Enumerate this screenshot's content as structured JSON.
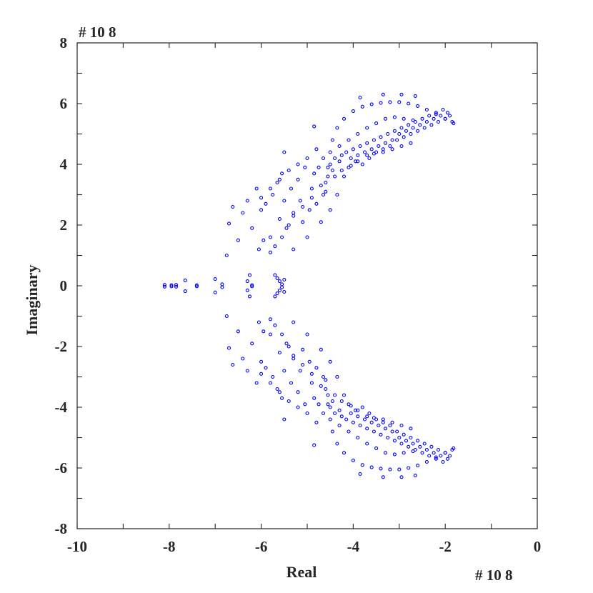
{
  "chart_data": {
    "type": "scatter",
    "title": "",
    "xlabel": "Real",
    "ylabel": "Imaginary",
    "x_multiplier": "# 10 8",
    "y_multiplier": "# 10 8",
    "xlim": [
      -10,
      0
    ],
    "ylim": [
      -8,
      8
    ],
    "xticks": [
      -10,
      -8,
      -6,
      -4,
      -2,
      0
    ],
    "yticks": [
      -8,
      -6,
      -4,
      -2,
      0,
      2,
      4,
      6,
      8
    ],
    "xtick_labels": [
      "-10",
      "-8",
      "-6",
      "-4",
      "-2",
      "0"
    ],
    "ytick_labels": [
      "-8",
      "-6",
      "-4",
      "-2",
      "0",
      "2",
      "4",
      "6",
      "8"
    ],
    "grid": false,
    "marker": "open-circle",
    "marker_color": "#0000ff",
    "axis_color": "#262626",
    "series": [
      {
        "points_upper_half": [
          [
            -8.1,
            0.03
          ],
          [
            -7.95,
            0.02
          ],
          [
            -7.85,
            0.03
          ],
          [
            -7.65,
            0.18
          ],
          [
            -7.4,
            0.02
          ],
          [
            -7.0,
            0.22
          ],
          [
            -6.85,
            0.05
          ],
          [
            -6.3,
            0.15
          ],
          [
            -6.25,
            0.35
          ],
          [
            -6.2,
            0.02
          ],
          [
            -5.7,
            0.35
          ],
          [
            -5.65,
            0.25
          ],
          [
            -5.6,
            0.15
          ],
          [
            -5.55,
            0.05
          ],
          [
            -5.5,
            0.2
          ],
          [
            -6.75,
            1.0
          ],
          [
            -6.7,
            2.05
          ],
          [
            -6.62,
            2.6
          ],
          [
            -6.5,
            1.5
          ],
          [
            -6.4,
            2.4
          ],
          [
            -6.3,
            2.8
          ],
          [
            -6.2,
            1.9
          ],
          [
            -6.1,
            3.2
          ],
          [
            -6.05,
            1.2
          ],
          [
            -6.0,
            2.5
          ],
          [
            -5.9,
            2.7
          ],
          [
            -5.8,
            1.6
          ],
          [
            -5.75,
            3.0
          ],
          [
            -5.65,
            3.4
          ],
          [
            -5.6,
            2.2
          ],
          [
            -5.55,
            3.7
          ],
          [
            -5.5,
            2.8
          ],
          [
            -5.45,
            1.9
          ],
          [
            -5.35,
            3.2
          ],
          [
            -5.3,
            2.4
          ],
          [
            -5.3,
            1.2
          ],
          [
            -5.2,
            3.5
          ],
          [
            -5.15,
            2.8
          ],
          [
            -5.1,
            2.1
          ],
          [
            -5.05,
            3.9
          ],
          [
            -5.0,
            1.6
          ],
          [
            -4.95,
            2.5
          ],
          [
            -4.9,
            3.2
          ],
          [
            -4.85,
            3.7
          ],
          [
            -4.8,
            2.7
          ],
          [
            -4.75,
            3.9
          ],
          [
            -4.7,
            2.1
          ],
          [
            -4.65,
            4.2
          ],
          [
            -4.6,
            3.1
          ],
          [
            -4.55,
            3.6
          ],
          [
            -4.5,
            2.5
          ],
          [
            -4.5,
            4.0
          ],
          [
            -4.45,
            3.8
          ],
          [
            -4.4,
            4.2
          ],
          [
            -4.35,
            3.0
          ],
          [
            -4.3,
            4.1
          ],
          [
            -4.25,
            4.3
          ],
          [
            -4.2,
            3.6
          ],
          [
            -4.15,
            4.4
          ],
          [
            -4.1,
            3.9
          ],
          [
            -4.05,
            4.2
          ],
          [
            -4.0,
            4.5
          ],
          [
            -3.95,
            4.1
          ],
          [
            -3.9,
            4.3
          ],
          [
            -3.85,
            4.6
          ],
          [
            -3.8,
            4.0
          ],
          [
            -3.75,
            4.4
          ],
          [
            -3.7,
            4.7
          ],
          [
            -3.65,
            4.2
          ],
          [
            -3.6,
            4.5
          ],
          [
            -3.55,
            4.8
          ],
          [
            -3.5,
            4.4
          ],
          [
            -3.45,
            4.6
          ],
          [
            -3.4,
            4.9
          ],
          [
            -3.35,
            4.5
          ],
          [
            -3.3,
            4.7
          ],
          [
            -3.25,
            5.0
          ],
          [
            -3.2,
            4.6
          ],
          [
            -3.15,
            4.8
          ],
          [
            -3.1,
            5.1
          ],
          [
            -3.05,
            4.8
          ],
          [
            -3.0,
            5.0
          ],
          [
            -2.95,
            5.2
          ],
          [
            -2.9,
            4.9
          ],
          [
            -2.85,
            5.1
          ],
          [
            -2.8,
            5.3
          ],
          [
            -2.75,
            5.0
          ],
          [
            -2.7,
            5.2
          ],
          [
            -2.65,
            5.4
          ],
          [
            -2.6,
            5.1
          ],
          [
            -2.55,
            5.3
          ],
          [
            -2.5,
            5.5
          ],
          [
            -2.45,
            5.2
          ],
          [
            -2.4,
            5.4
          ],
          [
            -2.35,
            5.6
          ],
          [
            -2.3,
            5.3
          ],
          [
            -2.25,
            5.5
          ],
          [
            -2.2,
            5.7
          ],
          [
            -2.15,
            5.4
          ],
          [
            -2.1,
            5.6
          ],
          [
            -2.05,
            5.8
          ],
          [
            -2.0,
            5.5
          ],
          [
            -1.95,
            5.7
          ],
          [
            -1.9,
            5.6
          ],
          [
            -1.85,
            5.4
          ],
          [
            -1.82,
            5.35
          ],
          [
            -4.65,
            3.0
          ],
          [
            -4.6,
            3.4
          ],
          [
            -4.55,
            3.9
          ],
          [
            -4.5,
            4.4
          ],
          [
            -4.45,
            4.8
          ],
          [
            -4.35,
            5.2
          ],
          [
            -4.2,
            5.5
          ],
          [
            -4.0,
            5.75
          ],
          [
            -3.8,
            5.9
          ],
          [
            -3.6,
            5.98
          ],
          [
            -3.4,
            6.02
          ],
          [
            -3.2,
            6.05
          ],
          [
            -3.0,
            6.05
          ],
          [
            -2.8,
            6.0
          ],
          [
            -2.6,
            5.92
          ],
          [
            -2.4,
            5.8
          ],
          [
            -2.2,
            5.65
          ],
          [
            -2.0,
            5.5
          ],
          [
            -3.85,
            6.2
          ],
          [
            -3.35,
            6.3
          ],
          [
            -2.95,
            6.3
          ],
          [
            -2.65,
            6.25
          ],
          [
            -4.1,
            4.8
          ],
          [
            -4.3,
            4.6
          ],
          [
            -3.9,
            5.0
          ],
          [
            -3.7,
            5.2
          ],
          [
            -3.5,
            5.35
          ],
          [
            -3.3,
            5.5
          ],
          [
            -3.1,
            5.55
          ],
          [
            -2.9,
            5.5
          ],
          [
            -2.7,
            5.45
          ],
          [
            -4.85,
            5.25
          ],
          [
            -5.5,
            4.4
          ],
          [
            -4.7,
            3.3
          ],
          [
            -4.9,
            2.9
          ],
          [
            -5.1,
            2.6
          ],
          [
            -5.3,
            2.3
          ],
          [
            -5.4,
            2.0
          ],
          [
            -5.55,
            1.6
          ],
          [
            -5.7,
            1.3
          ],
          [
            -5.8,
            1.1
          ],
          [
            -5.95,
            1.5
          ],
          [
            -4.4,
            3.6
          ],
          [
            -4.25,
            3.8
          ],
          [
            -4.05,
            3.95
          ],
          [
            -3.9,
            4.1
          ],
          [
            -3.7,
            4.3
          ],
          [
            -3.55,
            4.35
          ],
          [
            -3.35,
            4.4
          ],
          [
            -3.15,
            4.5
          ],
          [
            -2.95,
            4.6
          ],
          [
            -2.75,
            4.7
          ],
          [
            -4.8,
            4.5
          ],
          [
            -5.0,
            4.2
          ],
          [
            -5.2,
            4.0
          ],
          [
            -5.4,
            3.8
          ],
          [
            -5.6,
            3.5
          ],
          [
            -5.8,
            3.2
          ],
          [
            -6.0,
            2.9
          ]
        ],
        "mirror_about_x_axis": true
      }
    ]
  }
}
